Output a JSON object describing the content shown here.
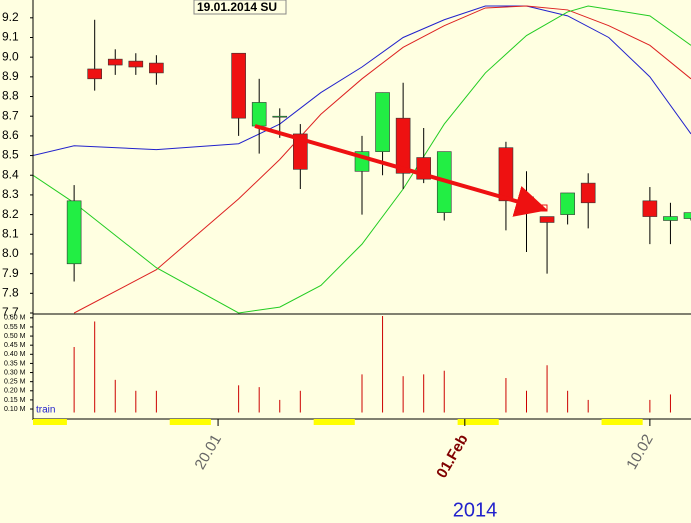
{
  "chart_data": [
    {
      "type": "candlestick",
      "label": "19.01.2014 SU",
      "xlabel": "2014",
      "x": [
        "2014-01-13",
        "2014-01-14",
        "2014-01-15",
        "2014-01-16",
        "2014-01-17",
        "2014-01-21",
        "2014-01-22",
        "2014-01-23",
        "2014-01-24",
        "2014-01-27",
        "2014-01-28",
        "2014-01-29",
        "2014-01-30",
        "2014-01-31",
        "2014-02-03",
        "2014-02-04",
        "2014-02-05",
        "2014-02-06",
        "2014-02-07",
        "2014-02-10",
        "2014-02-11",
        "2014-02-12"
      ],
      "open": [
        7.95,
        8.94,
        8.99,
        8.98,
        8.97,
        9.02,
        8.65,
        8.7,
        8.61,
        8.42,
        8.52,
        8.69,
        8.49,
        8.21,
        8.54,
        8.29,
        8.19,
        8.2,
        8.36,
        8.27,
        8.17,
        8.18
      ],
      "high": [
        8.35,
        9.19,
        9.04,
        9.02,
        9.01,
        9.02,
        8.89,
        8.74,
        8.66,
        8.6,
        8.82,
        8.87,
        8.64,
        8.52,
        8.57,
        8.42,
        8.19,
        8.31,
        8.41,
        8.34,
        8.26,
        8.21
      ],
      "low": [
        7.86,
        8.83,
        8.91,
        8.91,
        8.86,
        8.6,
        8.51,
        8.59,
        8.33,
        8.2,
        8.4,
        8.33,
        8.36,
        8.17,
        8.12,
        8.01,
        7.9,
        8.15,
        8.13,
        8.05,
        8.05,
        8.17
      ],
      "close": [
        8.27,
        8.89,
        8.96,
        8.95,
        8.92,
        8.69,
        8.77,
        8.7,
        8.43,
        8.52,
        8.82,
        8.41,
        8.38,
        8.52,
        8.27,
        8.22,
        8.16,
        8.31,
        8.26,
        8.19,
        8.19,
        8.21
      ],
      "up_color": "#22ee44",
      "down_color": "#ee1111",
      "lines": [
        {
          "color": "#2222cc",
          "x": [
            "2014-01-11",
            "2014-01-13",
            "2014-01-17",
            "2014-01-21",
            "2014-01-23",
            "2014-01-25",
            "2014-01-27",
            "2014-01-29",
            "2014-01-31",
            "2014-02-02",
            "2014-02-04",
            "2014-02-06",
            "2014-02-08",
            "2014-02-10",
            "2014-02-12"
          ],
          "values": [
            8.5,
            8.55,
            8.53,
            8.56,
            8.66,
            8.82,
            8.95,
            9.1,
            9.19,
            9.26,
            9.26,
            9.21,
            9.1,
            8.9,
            8.61
          ]
        },
        {
          "color": "#dd2222",
          "x": [
            "2014-01-13",
            "2014-01-17",
            "2014-01-21",
            "2014-01-23",
            "2014-01-25",
            "2014-01-27",
            "2014-01-29",
            "2014-01-31",
            "2014-02-02",
            "2014-02-04",
            "2014-02-06",
            "2014-02-08",
            "2014-02-10",
            "2014-02-12"
          ],
          "values": [
            7.7,
            7.92,
            8.28,
            8.48,
            8.71,
            8.89,
            9.05,
            9.16,
            9.25,
            9.26,
            9.24,
            9.16,
            9.06,
            8.89
          ]
        },
        {
          "color": "#22cc22",
          "x": [
            "2014-01-11",
            "2014-01-13",
            "2014-01-17",
            "2014-01-21",
            "2014-01-23",
            "2014-01-25",
            "2014-01-27",
            "2014-01-29",
            "2014-01-31",
            "2014-02-02",
            "2014-02-04",
            "2014-02-06",
            "2014-02-07",
            "2014-02-10",
            "2014-02-12"
          ],
          "values": [
            8.4,
            8.26,
            7.93,
            7.7,
            7.73,
            7.84,
            8.05,
            8.33,
            8.66,
            8.92,
            9.11,
            9.23,
            9.26,
            9.21,
            9.06
          ]
        }
      ],
      "xlim": [
        "2014-01-11",
        "2014-02-12"
      ],
      "xticks": [
        {
          "value": "2014-01-20",
          "label": "20.01"
        },
        {
          "value": "2014-02-01",
          "label": "01.Feb"
        },
        {
          "value": "2014-02-10",
          "label": "10.02"
        }
      ],
      "ylim": [
        7.7,
        9.26
      ],
      "yticks": [
        7.7,
        7.8,
        7.9,
        {
          "value": 8.0,
          "label": "8.0"
        },
        8.1,
        8.2,
        8.3,
        8.4,
        8.5,
        8.6,
        8.7,
        8.8,
        8.9,
        {
          "value": 9.0,
          "label": "9.0"
        },
        9.1,
        9.2
      ]
    },
    {
      "type": "bar",
      "label": "train",
      "color": "#cc0000",
      "x": [
        "2014-01-13",
        "2014-01-14",
        "2014-01-15",
        "2014-01-16",
        "2014-01-17",
        "2014-01-21",
        "2014-01-22",
        "2014-01-23",
        "2014-01-24",
        "2014-01-27",
        "2014-01-28",
        "2014-01-29",
        "2014-01-30",
        "2014-01-31",
        "2014-02-03",
        "2014-02-04",
        "2014-02-05",
        "2014-02-06",
        "2014-02-07",
        "2014-02-10",
        "2014-02-11",
        "2014-02-12"
      ],
      "values": [
        0.44,
        0.58,
        0.26,
        0.2,
        0.2,
        0.23,
        0.22,
        0.15,
        0.2,
        0.29,
        0.61,
        0.28,
        0.29,
        0.31,
        0.27,
        0.2,
        0.34,
        0.2,
        0.15,
        0.15,
        0.18,
        null
      ],
      "ylim": [
        0.07,
        0.61
      ],
      "yticks": [
        {
          "value": 0.1,
          "label": "0.10 M"
        },
        {
          "value": 0.15,
          "label": "0.15 M"
        },
        {
          "value": 0.2,
          "label": "0.20 M"
        },
        {
          "value": 0.25,
          "label": "0.25 M"
        },
        {
          "value": 0.3,
          "label": "0.30 M"
        },
        {
          "value": 0.35,
          "label": "0.35 M"
        },
        {
          "value": 0.4,
          "label": "0.40 M"
        },
        {
          "value": 0.45,
          "label": "0.45 M"
        },
        {
          "value": 0.5,
          "label": "0.50 M"
        },
        {
          "value": 0.55,
          "label": "0.55 M"
        },
        {
          "value": 0.6,
          "label": "0.60 M"
        }
      ]
    }
  ]
}
